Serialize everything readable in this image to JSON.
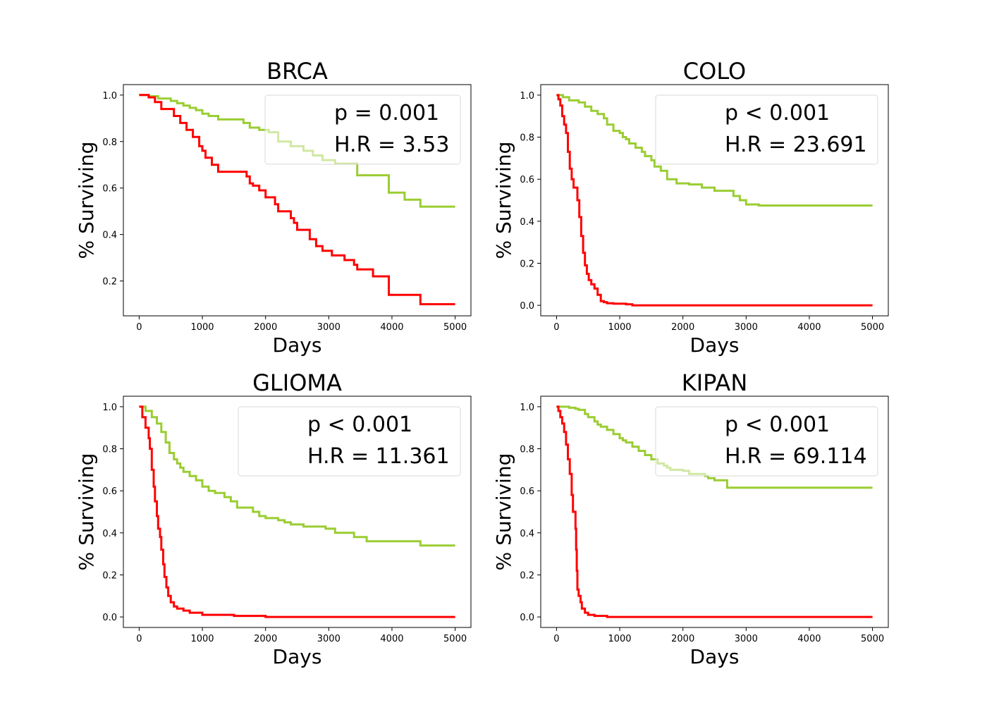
{
  "chart_data": [
    {
      "type": "line",
      "title": "BRCA",
      "xlabel": "Days",
      "ylabel": "% Surviving",
      "xlim": [
        -250,
        5250
      ],
      "ylim": [
        0.05,
        1.045
      ],
      "xticks": [
        "0",
        "1000",
        "2000",
        "3000",
        "4000",
        "5000"
      ],
      "yticks": [
        "0.2",
        "0.4",
        "0.6",
        "0.8",
        "1.0"
      ],
      "annotation": {
        "line1": "p = 0.001",
        "line2": "H.R = 3.53"
      },
      "grid": false,
      "legend_box": "top-right",
      "series": [
        {
          "color": "#9acd32",
          "style": "step",
          "x": [
            0,
            150,
            300,
            500,
            600,
            700,
            800,
            900,
            1000,
            1100,
            1250,
            1400,
            1500,
            1650,
            1750,
            1900,
            2050,
            2200,
            2400,
            2600,
            2750,
            2900,
            3100,
            3300,
            3450,
            3600,
            3800,
            3950,
            4200,
            4450,
            5000
          ],
          "y": [
            1.0,
            0.995,
            0.985,
            0.975,
            0.965,
            0.955,
            0.945,
            0.935,
            0.92,
            0.91,
            0.895,
            0.895,
            0.895,
            0.88,
            0.86,
            0.85,
            0.84,
            0.8,
            0.78,
            0.76,
            0.74,
            0.72,
            0.705,
            0.705,
            0.655,
            0.655,
            0.655,
            0.58,
            0.55,
            0.52,
            0.52
          ]
        },
        {
          "color": "#ff0000",
          "style": "step",
          "x": [
            0,
            150,
            250,
            350,
            550,
            650,
            750,
            850,
            950,
            1000,
            1050,
            1150,
            1250,
            1450,
            1650,
            1700,
            1750,
            1800,
            1900,
            2000,
            2150,
            2200,
            2400,
            2450,
            2500,
            2700,
            2800,
            2900,
            3050,
            3250,
            3400,
            3450,
            3700,
            3950,
            4450,
            5000
          ],
          "y": [
            1.0,
            0.99,
            0.97,
            0.94,
            0.91,
            0.88,
            0.85,
            0.82,
            0.78,
            0.76,
            0.73,
            0.7,
            0.67,
            0.67,
            0.67,
            0.65,
            0.62,
            0.61,
            0.59,
            0.56,
            0.53,
            0.5,
            0.47,
            0.45,
            0.42,
            0.38,
            0.35,
            0.33,
            0.31,
            0.29,
            0.27,
            0.25,
            0.22,
            0.14,
            0.1,
            0.1
          ]
        }
      ]
    },
    {
      "type": "line",
      "title": "COLO",
      "xlabel": "Days",
      "ylabel": "% Surviving",
      "xlim": [
        -250,
        5250
      ],
      "ylim": [
        -0.05,
        1.05
      ],
      "xticks": [
        "0",
        "1000",
        "2000",
        "3000",
        "4000",
        "5000"
      ],
      "yticks": [
        "0.0",
        "0.2",
        "0.4",
        "0.6",
        "0.8",
        "1.0"
      ],
      "annotation": {
        "line1": "p < 0.001",
        "line2": "H.R = 23.691"
      },
      "grid": false,
      "legend_box": "top-right",
      "series": [
        {
          "color": "#9acd32",
          "style": "step",
          "x": [
            0,
            100,
            200,
            350,
            450,
            550,
            650,
            750,
            800,
            900,
            1000,
            1050,
            1100,
            1150,
            1250,
            1350,
            1400,
            1500,
            1550,
            1650,
            1750,
            1900,
            2100,
            2300,
            2500,
            2800,
            2900,
            3000,
            3200,
            5000
          ],
          "y": [
            1.0,
            0.99,
            0.975,
            0.965,
            0.945,
            0.925,
            0.91,
            0.89,
            0.86,
            0.83,
            0.82,
            0.8,
            0.79,
            0.77,
            0.75,
            0.73,
            0.71,
            0.69,
            0.66,
            0.64,
            0.6,
            0.58,
            0.575,
            0.56,
            0.545,
            0.52,
            0.5,
            0.48,
            0.475,
            0.475
          ]
        },
        {
          "color": "#ff0000",
          "style": "step",
          "x": [
            0,
            30,
            60,
            90,
            120,
            150,
            180,
            210,
            240,
            270,
            300,
            330,
            360,
            390,
            420,
            450,
            480,
            510,
            550,
            600,
            650,
            700,
            750,
            800,
            900,
            1100,
            1200,
            5000
          ],
          "y": [
            1.0,
            0.98,
            0.95,
            0.9,
            0.86,
            0.82,
            0.73,
            0.65,
            0.6,
            0.56,
            0.56,
            0.5,
            0.42,
            0.33,
            0.25,
            0.19,
            0.15,
            0.12,
            0.1,
            0.08,
            0.05,
            0.02,
            0.015,
            0.01,
            0.008,
            0.005,
            0.0,
            0.0
          ]
        }
      ]
    },
    {
      "type": "line",
      "title": "GLIOMA",
      "xlabel": "Days",
      "ylabel": "% Surviving",
      "xlim": [
        -250,
        5250
      ],
      "ylim": [
        -0.05,
        1.05
      ],
      "xticks": [
        "0",
        "1000",
        "2000",
        "3000",
        "4000",
        "5000"
      ],
      "yticks": [
        "0.0",
        "0.2",
        "0.4",
        "0.6",
        "0.8",
        "1.0"
      ],
      "annotation": {
        "line1": "p < 0.001",
        "line2": "H.R = 11.361"
      },
      "grid": false,
      "legend_box": "top-right",
      "series": [
        {
          "color": "#9acd32",
          "style": "step",
          "x": [
            0,
            100,
            200,
            280,
            350,
            420,
            480,
            550,
            600,
            650,
            700,
            800,
            900,
            1000,
            1100,
            1200,
            1350,
            1450,
            1550,
            1650,
            1800,
            1900,
            2000,
            2200,
            2300,
            2400,
            2600,
            2800,
            2950,
            3100,
            3300,
            3400,
            3600,
            4200,
            4450,
            5000
          ],
          "y": [
            1.0,
            0.98,
            0.95,
            0.92,
            0.88,
            0.83,
            0.78,
            0.75,
            0.73,
            0.71,
            0.69,
            0.67,
            0.65,
            0.62,
            0.6,
            0.59,
            0.57,
            0.55,
            0.52,
            0.52,
            0.5,
            0.48,
            0.47,
            0.46,
            0.45,
            0.44,
            0.43,
            0.43,
            0.42,
            0.4,
            0.4,
            0.38,
            0.36,
            0.36,
            0.34,
            0.34
          ]
        },
        {
          "color": "#ff0000",
          "style": "step",
          "x": [
            0,
            50,
            100,
            150,
            170,
            200,
            230,
            250,
            280,
            300,
            330,
            350,
            380,
            400,
            430,
            460,
            500,
            550,
            600,
            700,
            800,
            1000,
            1500,
            2000,
            5000
          ],
          "y": [
            1.0,
            0.95,
            0.9,
            0.85,
            0.8,
            0.7,
            0.62,
            0.55,
            0.48,
            0.42,
            0.38,
            0.32,
            0.25,
            0.19,
            0.14,
            0.1,
            0.07,
            0.05,
            0.04,
            0.03,
            0.02,
            0.01,
            0.005,
            0.0,
            0.0
          ]
        }
      ]
    },
    {
      "type": "line",
      "title": "KIPAN",
      "xlabel": "Days",
      "ylabel": "% Surviving",
      "xlim": [
        -250,
        5250
      ],
      "ylim": [
        -0.05,
        1.05
      ],
      "xticks": [
        "0",
        "1000",
        "2000",
        "3000",
        "4000",
        "5000"
      ],
      "yticks": [
        "0.0",
        "0.2",
        "0.4",
        "0.6",
        "0.8",
        "1.0"
      ],
      "annotation": {
        "line1": "p < 0.001",
        "line2": "H.R = 69.114"
      },
      "grid": false,
      "legend_box": "top-right",
      "series": [
        {
          "color": "#9acd32",
          "style": "step",
          "x": [
            0,
            200,
            300,
            350,
            450,
            500,
            600,
            650,
            700,
            800,
            900,
            1000,
            1050,
            1100,
            1200,
            1300,
            1400,
            1500,
            1600,
            1700,
            1750,
            1800,
            2000,
            2100,
            2200,
            2350,
            2400,
            2500,
            2600,
            2700,
            5000
          ],
          "y": [
            1.0,
            0.995,
            0.99,
            0.985,
            0.965,
            0.95,
            0.93,
            0.915,
            0.905,
            0.89,
            0.87,
            0.85,
            0.84,
            0.83,
            0.81,
            0.79,
            0.77,
            0.75,
            0.73,
            0.72,
            0.71,
            0.7,
            0.695,
            0.68,
            0.68,
            0.67,
            0.66,
            0.65,
            0.65,
            0.615,
            0.615
          ]
        },
        {
          "color": "#ff0000",
          "style": "step",
          "x": [
            0,
            30,
            60,
            90,
            120,
            150,
            180,
            210,
            240,
            260,
            280,
            300,
            310,
            320,
            330,
            350,
            380,
            400,
            450,
            500,
            600,
            800,
            5000
          ],
          "y": [
            1.0,
            0.98,
            0.95,
            0.92,
            0.88,
            0.82,
            0.75,
            0.68,
            0.58,
            0.5,
            0.5,
            0.42,
            0.32,
            0.22,
            0.13,
            0.1,
            0.07,
            0.04,
            0.02,
            0.01,
            0.005,
            0.0,
            0.0
          ]
        }
      ]
    }
  ]
}
